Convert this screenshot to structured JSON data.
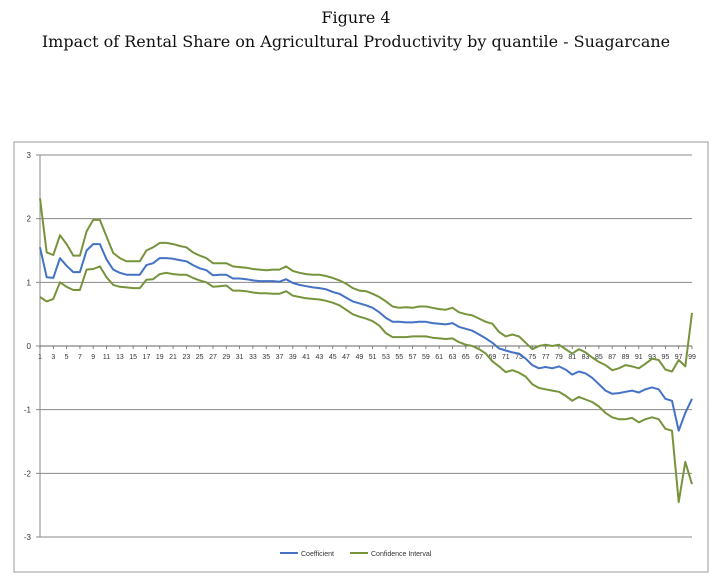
{
  "header": {
    "figure_label": "Figure 4",
    "title": "Impact of Rental Share on Agricultural Productivity by quantile - Suagarcane"
  },
  "colors": {
    "coefficient": "#4472C4",
    "confidence": "#77933C",
    "gridline": "#888888",
    "frame": "#999999"
  },
  "chart_data": {
    "type": "line",
    "title": "Impact of Rental Share on Agricultural Productivity by quantile - Suagarcane",
    "xlabel": "",
    "ylabel": "",
    "xlim": [
      1,
      99
    ],
    "ylim": [
      -3,
      3
    ],
    "y_ticks": [
      3,
      2,
      1,
      0,
      -1,
      -2,
      -3
    ],
    "x_ticks": [
      1,
      3,
      5,
      7,
      9,
      11,
      13,
      15,
      17,
      19,
      21,
      23,
      25,
      27,
      29,
      31,
      33,
      35,
      37,
      39,
      41,
      43,
      45,
      47,
      49,
      51,
      53,
      55,
      57,
      59,
      61,
      63,
      65,
      67,
      69,
      71,
      73,
      75,
      77,
      79,
      81,
      83,
      85,
      87,
      89,
      91,
      93,
      95,
      97,
      99
    ],
    "grid": "horizontal",
    "legend": "bottom",
    "x": [
      1,
      2,
      3,
      4,
      5,
      6,
      7,
      8,
      9,
      10,
      11,
      12,
      13,
      14,
      15,
      16,
      17,
      18,
      19,
      20,
      21,
      22,
      23,
      24,
      25,
      26,
      27,
      28,
      29,
      30,
      31,
      32,
      33,
      34,
      35,
      36,
      37,
      38,
      39,
      40,
      41,
      42,
      43,
      44,
      45,
      46,
      47,
      48,
      49,
      50,
      51,
      52,
      53,
      54,
      55,
      56,
      57,
      58,
      59,
      60,
      61,
      62,
      63,
      64,
      65,
      66,
      67,
      68,
      69,
      70,
      71,
      72,
      73,
      74,
      75,
      76,
      77,
      78,
      79,
      80,
      81,
      82,
      83,
      84,
      85,
      86,
      87,
      88,
      89,
      90,
      91,
      92,
      93,
      94,
      95,
      96,
      97,
      98,
      99
    ],
    "series": [
      {
        "name": "Coefficient",
        "values": [
          1.55,
          1.08,
          1.07,
          1.38,
          1.26,
          1.16,
          1.16,
          1.5,
          1.6,
          1.6,
          1.36,
          1.2,
          1.15,
          1.12,
          1.12,
          1.12,
          1.27,
          1.3,
          1.38,
          1.38,
          1.37,
          1.35,
          1.33,
          1.27,
          1.22,
          1.19,
          1.11,
          1.12,
          1.12,
          1.06,
          1.06,
          1.05,
          1.03,
          1.02,
          1.02,
          1.02,
          1.01,
          1.05,
          0.99,
          0.96,
          0.94,
          0.92,
          0.91,
          0.89,
          0.85,
          0.82,
          0.76,
          0.7,
          0.67,
          0.64,
          0.6,
          0.53,
          0.44,
          0.38,
          0.38,
          0.37,
          0.37,
          0.38,
          0.38,
          0.36,
          0.35,
          0.34,
          0.36,
          0.3,
          0.27,
          0.24,
          0.18,
          0.12,
          0.05,
          -0.04,
          -0.07,
          -0.1,
          -0.12,
          -0.2,
          -0.3,
          -0.35,
          -0.33,
          -0.35,
          -0.32,
          -0.37,
          -0.45,
          -0.4,
          -0.43,
          -0.5,
          -0.6,
          -0.7,
          -0.75,
          -0.74,
          -0.72,
          -0.7,
          -0.73,
          -0.68,
          -0.65,
          -0.68,
          -0.83,
          -0.86,
          -1.33,
          -1.05,
          -0.83
        ]
      },
      {
        "name": "Confidence Interval",
        "values": [
          2.32,
          1.47,
          1.43,
          1.74,
          1.6,
          1.42,
          1.42,
          1.8,
          1.98,
          1.98,
          1.72,
          1.46,
          1.38,
          1.33,
          1.33,
          1.33,
          1.5,
          1.55,
          1.62,
          1.62,
          1.6,
          1.57,
          1.55,
          1.47,
          1.42,
          1.38,
          1.3,
          1.3,
          1.3,
          1.25,
          1.24,
          1.23,
          1.21,
          1.2,
          1.19,
          1.2,
          1.2,
          1.25,
          1.18,
          1.15,
          1.13,
          1.12,
          1.12,
          1.1,
          1.07,
          1.03,
          0.98,
          0.91,
          0.87,
          0.86,
          0.82,
          0.77,
          0.7,
          0.62,
          0.6,
          0.61,
          0.6,
          0.62,
          0.62,
          0.6,
          0.58,
          0.57,
          0.6,
          0.53,
          0.5,
          0.48,
          0.43,
          0.38,
          0.35,
          0.22,
          0.15,
          0.18,
          0.15,
          0.05,
          -0.05,
          0.0,
          0.02,
          0.0,
          0.02,
          -0.05,
          -0.12,
          -0.05,
          -0.1,
          -0.18,
          -0.25,
          -0.3,
          -0.38,
          -0.35,
          -0.3,
          -0.32,
          -0.35,
          -0.28,
          -0.2,
          -0.22,
          -0.37,
          -0.4,
          -0.22,
          -0.32,
          0.52
        ]
      },
      {
        "name": "",
        "values": [
          0.77,
          0.7,
          0.74,
          1.0,
          0.93,
          0.88,
          0.88,
          1.2,
          1.21,
          1.25,
          1.08,
          0.96,
          0.93,
          0.92,
          0.91,
          0.91,
          1.04,
          1.05,
          1.13,
          1.15,
          1.13,
          1.12,
          1.12,
          1.07,
          1.03,
          1.0,
          0.93,
          0.94,
          0.95,
          0.87,
          0.87,
          0.86,
          0.84,
          0.83,
          0.83,
          0.82,
          0.82,
          0.86,
          0.79,
          0.77,
          0.75,
          0.74,
          0.73,
          0.71,
          0.68,
          0.64,
          0.57,
          0.5,
          0.46,
          0.43,
          0.39,
          0.32,
          0.2,
          0.14,
          0.14,
          0.14,
          0.15,
          0.15,
          0.15,
          0.13,
          0.12,
          0.11,
          0.12,
          0.06,
          0.02,
          0.0,
          -0.05,
          -0.12,
          -0.24,
          -0.32,
          -0.41,
          -0.38,
          -0.42,
          -0.48,
          -0.6,
          -0.66,
          -0.68,
          -0.7,
          -0.72,
          -0.78,
          -0.86,
          -0.8,
          -0.84,
          -0.88,
          -0.95,
          -1.05,
          -1.12,
          -1.15,
          -1.15,
          -1.13,
          -1.2,
          -1.15,
          -1.12,
          -1.15,
          -1.3,
          -1.33,
          -2.45,
          -1.82,
          -2.17
        ]
      }
    ]
  },
  "legend": {
    "items": [
      {
        "label": "Coefficient",
        "color": "#4472C4"
      },
      {
        "label": "Confidence Interval",
        "color": "#77933C"
      }
    ]
  }
}
